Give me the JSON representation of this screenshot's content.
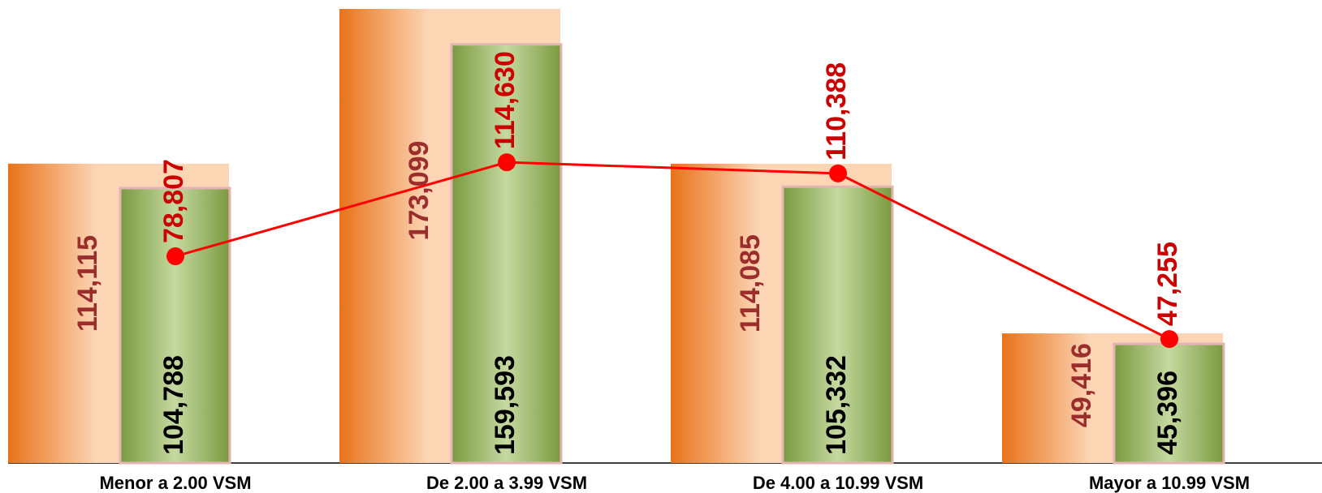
{
  "chart_data": {
    "type": "bar-line",
    "categories": [
      "Menor a 2.00 VSM",
      "De 2.00 a 3.99 VSM",
      "De 4.00 a 10.99 VSM",
      "Mayor a 10.99 VSM"
    ],
    "series": [
      {
        "type": "bar",
        "color": "#e8731a",
        "label_color": "#9b2d2d",
        "values": [
          114115,
          173099,
          114085,
          49416
        ],
        "value_labels": [
          "114,115",
          "173,099",
          "114,085",
          "49,416"
        ]
      },
      {
        "type": "bar",
        "color": "#7a9a3e",
        "label_color": "#000000",
        "values": [
          104788,
          159593,
          105332,
          45396
        ],
        "value_labels": [
          "104,788",
          "159,593",
          "105,332",
          "45,396"
        ]
      },
      {
        "type": "line",
        "color": "#ff0000",
        "label_color": "#cc0000",
        "values": [
          78807,
          114630,
          110388,
          47255
        ],
        "value_labels": [
          "78,807",
          "114,630",
          "110,388",
          "47,255"
        ]
      }
    ]
  }
}
